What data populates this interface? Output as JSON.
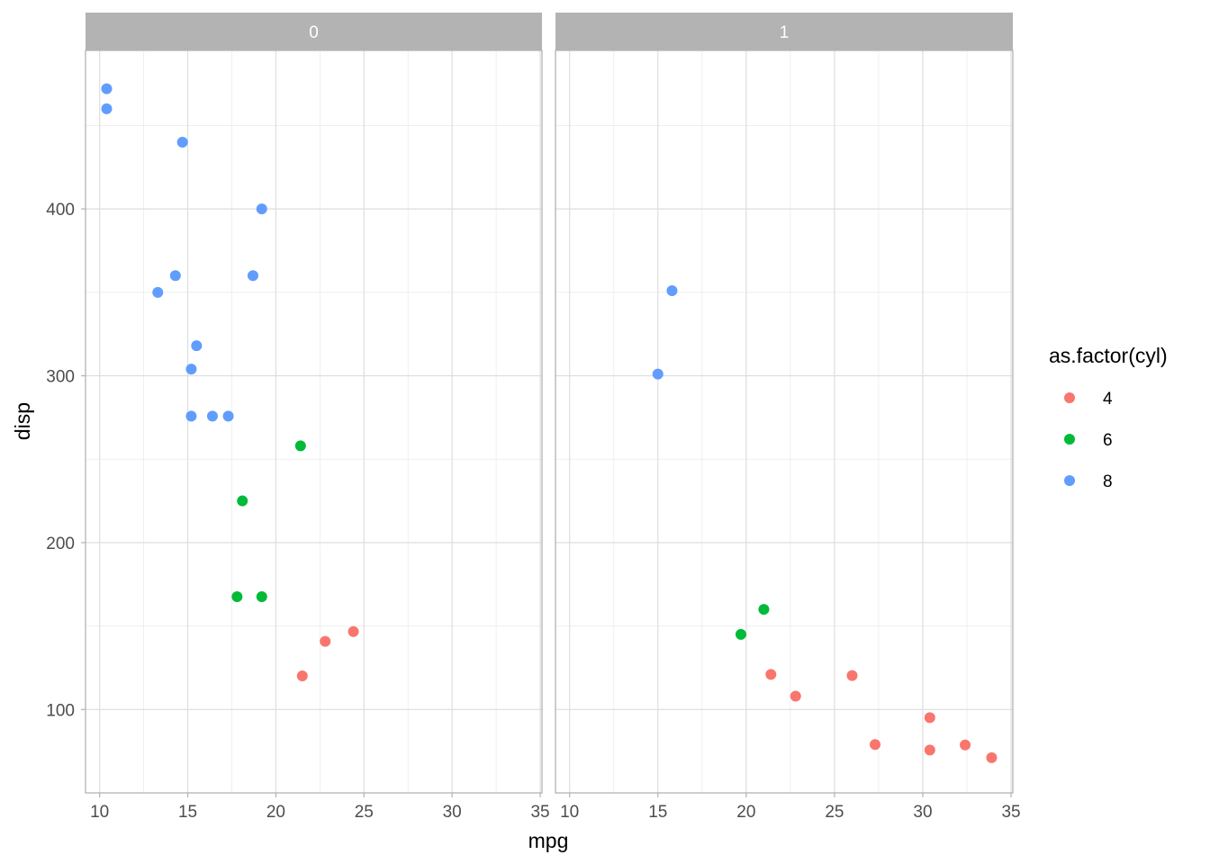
{
  "chart_data": {
    "type": "scatter",
    "xlabel": "mpg",
    "ylabel": "disp",
    "xlim": [
      9.2,
      35.1
    ],
    "ylim": [
      50,
      495
    ],
    "x_ticks": [
      10,
      15,
      20,
      25,
      30,
      35
    ],
    "y_ticks": [
      100,
      200,
      300,
      400
    ],
    "facet_variable": "am",
    "facets": [
      "0",
      "1"
    ],
    "legend": {
      "title": "as.factor(cyl)",
      "position": "right",
      "entries": [
        {
          "label": "4",
          "color": "#F8766D"
        },
        {
          "label": "6",
          "color": "#00BA38"
        },
        {
          "label": "8",
          "color": "#619CFF"
        }
      ]
    },
    "grid": true,
    "colors": {
      "4": "#F8766D",
      "6": "#00BA38",
      "8": "#619CFF"
    },
    "points": [
      {
        "facet": "0",
        "cyl": "4",
        "x": 21.5,
        "y": 120.1
      },
      {
        "facet": "0",
        "cyl": "4",
        "x": 22.8,
        "y": 140.8
      },
      {
        "facet": "0",
        "cyl": "4",
        "x": 24.4,
        "y": 146.7
      },
      {
        "facet": "0",
        "cyl": "6",
        "x": 21.4,
        "y": 258
      },
      {
        "facet": "0",
        "cyl": "6",
        "x": 18.1,
        "y": 225
      },
      {
        "facet": "0",
        "cyl": "6",
        "x": 19.2,
        "y": 167.6
      },
      {
        "facet": "0",
        "cyl": "6",
        "x": 17.8,
        "y": 167.6
      },
      {
        "facet": "0",
        "cyl": "8",
        "x": 10.4,
        "y": 472
      },
      {
        "facet": "0",
        "cyl": "8",
        "x": 10.4,
        "y": 460
      },
      {
        "facet": "0",
        "cyl": "8",
        "x": 14.7,
        "y": 440
      },
      {
        "facet": "0",
        "cyl": "8",
        "x": 19.2,
        "y": 400
      },
      {
        "facet": "0",
        "cyl": "8",
        "x": 14.3,
        "y": 360
      },
      {
        "facet": "0",
        "cyl": "8",
        "x": 18.7,
        "y": 360
      },
      {
        "facet": "0",
        "cyl": "8",
        "x": 13.3,
        "y": 350
      },
      {
        "facet": "0",
        "cyl": "8",
        "x": 15.5,
        "y": 318
      },
      {
        "facet": "0",
        "cyl": "8",
        "x": 15.2,
        "y": 304
      },
      {
        "facet": "0",
        "cyl": "8",
        "x": 16.4,
        "y": 275.8
      },
      {
        "facet": "0",
        "cyl": "8",
        "x": 17.3,
        "y": 275.8
      },
      {
        "facet": "0",
        "cyl": "8",
        "x": 15.2,
        "y": 275.8
      },
      {
        "facet": "1",
        "cyl": "4",
        "x": 22.8,
        "y": 108
      },
      {
        "facet": "1",
        "cyl": "4",
        "x": 32.4,
        "y": 78.7
      },
      {
        "facet": "1",
        "cyl": "4",
        "x": 30.4,
        "y": 75.7
      },
      {
        "facet": "1",
        "cyl": "4",
        "x": 33.9,
        "y": 71.1
      },
      {
        "facet": "1",
        "cyl": "4",
        "x": 27.3,
        "y": 79
      },
      {
        "facet": "1",
        "cyl": "4",
        "x": 26.0,
        "y": 120.3
      },
      {
        "facet": "1",
        "cyl": "4",
        "x": 30.4,
        "y": 95.1
      },
      {
        "facet": "1",
        "cyl": "4",
        "x": 21.4,
        "y": 121
      },
      {
        "facet": "1",
        "cyl": "6",
        "x": 21.0,
        "y": 160
      },
      {
        "facet": "1",
        "cyl": "6",
        "x": 19.7,
        "y": 145
      },
      {
        "facet": "1",
        "cyl": "8",
        "x": 15.8,
        "y": 351
      },
      {
        "facet": "1",
        "cyl": "8",
        "x": 15.0,
        "y": 301
      }
    ]
  }
}
